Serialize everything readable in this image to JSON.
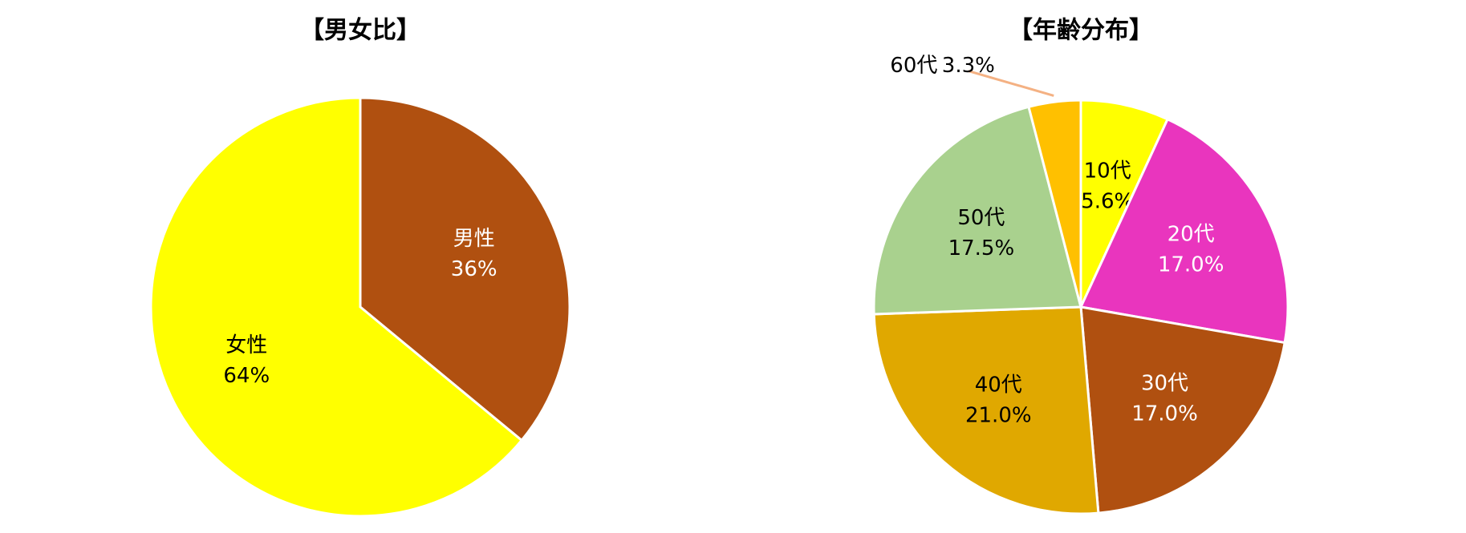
{
  "chart_data": [
    {
      "type": "pie",
      "title": "【男女比】",
      "categories": [
        "男性",
        "女性"
      ],
      "values": [
        36,
        64
      ],
      "value_labels": [
        "36%",
        "64%"
      ],
      "colors": [
        "#b05010",
        "#ffff00"
      ]
    },
    {
      "type": "pie",
      "title": "【年齢分布】",
      "categories": [
        "10代",
        "20代",
        "30代",
        "40代",
        "50代",
        "60代"
      ],
      "values": [
        5.6,
        17.0,
        17.0,
        21.0,
        17.5,
        3.3
      ],
      "value_labels": [
        "5.6%",
        "17.0%",
        "17.0%",
        "21.0%",
        "17.5%",
        "3.3%"
      ],
      "colors": [
        "#ffff00",
        "#e935be",
        "#b05010",
        "#e0a800",
        "#a9d18e",
        "#ffc000"
      ]
    }
  ]
}
